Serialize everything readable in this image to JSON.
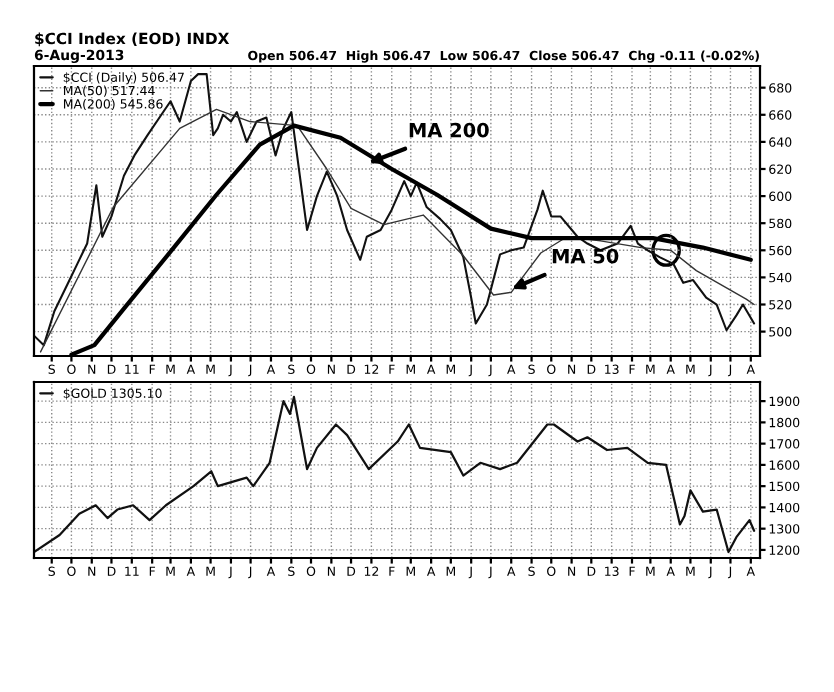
{
  "chart_data": [
    {
      "type": "line",
      "title": "$CCI Index (EOD) INDX",
      "subtitle": "6-Aug-2013",
      "annotations": [
        "Open 506.47  High 506.47  Low 506.47  Close 506.47  Chg -0.11 (-0.02%)",
        {
          "text": "MA 200",
          "x": "2011-12-20",
          "y": 623
        },
        {
          "text": "MA 50",
          "x": "2012-07-25",
          "y": 530
        }
      ],
      "xlim": [
        "2010-08-05",
        "2013-08-15"
      ],
      "ylim": [
        482,
        696
      ],
      "yticks": [
        500,
        520,
        540,
        560,
        580,
        600,
        620,
        640,
        660,
        680
      ],
      "xticks": [
        {
          "value": "2010-09-01",
          "label": "S"
        },
        {
          "value": "2010-10-01",
          "label": "O"
        },
        {
          "value": "2010-11-01",
          "label": "N"
        },
        {
          "value": "2010-12-01",
          "label": "D"
        },
        {
          "value": "2011-01-01",
          "label": "11"
        },
        {
          "value": "2011-02-01",
          "label": "F"
        },
        {
          "value": "2011-03-01",
          "label": "M"
        },
        {
          "value": "2011-04-01",
          "label": "A"
        },
        {
          "value": "2011-05-01",
          "label": "M"
        },
        {
          "value": "2011-06-01",
          "label": "J"
        },
        {
          "value": "2011-07-01",
          "label": "J"
        },
        {
          "value": "2011-08-01",
          "label": "A"
        },
        {
          "value": "2011-09-01",
          "label": "S"
        },
        {
          "value": "2011-10-01",
          "label": "O"
        },
        {
          "value": "2011-11-01",
          "label": "N"
        },
        {
          "value": "2011-12-01",
          "label": "D"
        },
        {
          "value": "2012-01-01",
          "label": "12"
        },
        {
          "value": "2012-02-01",
          "label": "F"
        },
        {
          "value": "2012-03-01",
          "label": "M"
        },
        {
          "value": "2012-04-01",
          "label": "A"
        },
        {
          "value": "2012-05-01",
          "label": "M"
        },
        {
          "value": "2012-06-01",
          "label": "J"
        },
        {
          "value": "2012-07-01",
          "label": "J"
        },
        {
          "value": "2012-08-01",
          "label": "A"
        },
        {
          "value": "2012-09-01",
          "label": "S"
        },
        {
          "value": "2012-10-01",
          "label": "O"
        },
        {
          "value": "2012-11-01",
          "label": "N"
        },
        {
          "value": "2012-12-01",
          "label": "D"
        },
        {
          "value": "2013-01-01",
          "label": "13"
        },
        {
          "value": "2013-02-01",
          "label": "F"
        },
        {
          "value": "2013-03-01",
          "label": "M"
        },
        {
          "value": "2013-04-01",
          "label": "A"
        },
        {
          "value": "2013-05-01",
          "label": "M"
        },
        {
          "value": "2013-06-01",
          "label": "J"
        },
        {
          "value": "2013-07-01",
          "label": "J"
        },
        {
          "value": "2013-08-01",
          "label": "A"
        }
      ],
      "grid": true,
      "legend": "top left",
      "series": [
        {
          "name": "$CCI (Daily) 506.47",
          "color": "#111111",
          "x": [
            "2010-08-05",
            "2010-08-20",
            "2010-09-05",
            "2010-09-25",
            "2010-10-10",
            "2010-10-25",
            "2010-11-08",
            "2010-11-17",
            "2010-12-01",
            "2010-12-20",
            "2011-01-05",
            "2011-01-25",
            "2011-02-15",
            "2011-03-01",
            "2011-03-15",
            "2011-04-01",
            "2011-04-12",
            "2011-04-25",
            "2011-05-05",
            "2011-05-12",
            "2011-05-20",
            "2011-06-01",
            "2011-06-10",
            "2011-06-25",
            "2011-07-10",
            "2011-07-25",
            "2011-08-08",
            "2011-08-20",
            "2011-09-01",
            "2011-09-25",
            "2011-10-10",
            "2011-10-25",
            "2011-11-10",
            "2011-11-25",
            "2011-12-15",
            "2011-12-25",
            "2012-01-15",
            "2012-02-01",
            "2012-02-20",
            "2012-03-01",
            "2012-03-10",
            "2012-03-25",
            "2012-04-15",
            "2012-05-01",
            "2012-05-20",
            "2012-06-01",
            "2012-06-08",
            "2012-06-25",
            "2012-07-15",
            "2012-08-01",
            "2012-08-20",
            "2012-09-10",
            "2012-09-18",
            "2012-10-01",
            "2012-10-15",
            "2012-11-10",
            "2012-11-25",
            "2012-12-15",
            "2013-01-10",
            "2013-01-30",
            "2013-02-10",
            "2013-02-25",
            "2013-03-15",
            "2013-04-05",
            "2013-04-20",
            "2013-05-05",
            "2013-05-25",
            "2013-06-10",
            "2013-06-25",
            "2013-07-10",
            "2013-07-20",
            "2013-08-06"
          ],
          "values": [
            497,
            490,
            515,
            535,
            550,
            565,
            608,
            570,
            585,
            615,
            630,
            645,
            660,
            670,
            655,
            685,
            690,
            690,
            645,
            650,
            660,
            655,
            662,
            640,
            655,
            658,
            630,
            650,
            662,
            575,
            600,
            618,
            600,
            575,
            553,
            570,
            575,
            590,
            611,
            600,
            610,
            592,
            583,
            575,
            555,
            525,
            506,
            520,
            557,
            560,
            562,
            590,
            604,
            585,
            585,
            570,
            565,
            560,
            565,
            578,
            565,
            560,
            555,
            550,
            536,
            538,
            525,
            520,
            501,
            512,
            520,
            506
          ]
        },
        {
          "name": "MA(50) 517.44",
          "color": "#333333",
          "x": [
            "2010-08-15",
            "2010-12-04",
            "2011-03-15",
            "2011-05-10",
            "2011-06-30",
            "2011-09-10",
            "2011-10-25",
            "2011-12-01",
            "2012-01-20",
            "2012-03-20",
            "2012-05-20",
            "2012-07-05",
            "2012-08-01",
            "2012-09-15",
            "2012-10-25",
            "2012-12-15",
            "2013-02-15",
            "2013-04-01",
            "2013-05-10",
            "2013-07-25",
            "2013-08-06"
          ],
          "values": [
            485,
            592,
            650,
            664,
            655,
            652,
            620,
            591,
            579,
            586,
            556,
            527,
            529,
            558,
            570,
            567,
            562,
            560,
            545,
            524,
            520
          ]
        },
        {
          "name": "MA(200) 545.86",
          "color": "#000000",
          "x": [
            "2010-10-01",
            "2010-11-05",
            "2010-12-20",
            "2011-03-01",
            "2011-05-10",
            "2011-07-15",
            "2011-09-05",
            "2011-11-15",
            "2012-02-01",
            "2012-04-10",
            "2012-07-01",
            "2012-09-01",
            "2012-12-15",
            "2013-03-05",
            "2013-05-20",
            "2013-08-01"
          ],
          "values": [
            483,
            490,
            517,
            559,
            601,
            638,
            652,
            643,
            620,
            601,
            576,
            569,
            569,
            569,
            562,
            553
          ]
        }
      ]
    },
    {
      "type": "line",
      "xlim": [
        "2010-08-05",
        "2013-08-15"
      ],
      "ylim": [
        1162,
        1990
      ],
      "yticks": [
        1200,
        1300,
        1400,
        1500,
        1600,
        1700,
        1800,
        1900
      ],
      "xticks": [
        {
          "value": "2010-09-01",
          "label": "S"
        },
        {
          "value": "2010-10-01",
          "label": "O"
        },
        {
          "value": "2010-11-01",
          "label": "N"
        },
        {
          "value": "2010-12-01",
          "label": "D"
        },
        {
          "value": "2011-01-01",
          "label": "11"
        },
        {
          "value": "2011-02-01",
          "label": "F"
        },
        {
          "value": "2011-03-01",
          "label": "M"
        },
        {
          "value": "2011-04-01",
          "label": "A"
        },
        {
          "value": "2011-05-01",
          "label": "M"
        },
        {
          "value": "2011-06-01",
          "label": "J"
        },
        {
          "value": "2011-07-01",
          "label": "J"
        },
        {
          "value": "2011-08-01",
          "label": "A"
        },
        {
          "value": "2011-09-01",
          "label": "S"
        },
        {
          "value": "2011-10-01",
          "label": "O"
        },
        {
          "value": "2011-11-01",
          "label": "N"
        },
        {
          "value": "2011-12-01",
          "label": "D"
        },
        {
          "value": "2012-01-01",
          "label": "12"
        },
        {
          "value": "2012-02-01",
          "label": "F"
        },
        {
          "value": "2012-03-01",
          "label": "M"
        },
        {
          "value": "2012-04-01",
          "label": "A"
        },
        {
          "value": "2012-05-01",
          "label": "M"
        },
        {
          "value": "2012-06-01",
          "label": "J"
        },
        {
          "value": "2012-07-01",
          "label": "J"
        },
        {
          "value": "2012-08-01",
          "label": "A"
        },
        {
          "value": "2012-09-01",
          "label": "S"
        },
        {
          "value": "2012-10-01",
          "label": "O"
        },
        {
          "value": "2012-11-01",
          "label": "N"
        },
        {
          "value": "2012-12-01",
          "label": "D"
        },
        {
          "value": "2013-01-01",
          "label": "13"
        },
        {
          "value": "2013-02-01",
          "label": "F"
        },
        {
          "value": "2013-03-01",
          "label": "M"
        },
        {
          "value": "2013-04-01",
          "label": "A"
        },
        {
          "value": "2013-05-01",
          "label": "M"
        },
        {
          "value": "2013-06-01",
          "label": "J"
        },
        {
          "value": "2013-07-01",
          "label": "J"
        },
        {
          "value": "2013-08-01",
          "label": "A"
        }
      ],
      "grid": true,
      "legend": "top left",
      "series": [
        {
          "name": "$GOLD 1305.10",
          "color": "#111111",
          "x": [
            "2010-08-05",
            "2010-09-13",
            "2010-10-13",
            "2010-11-07",
            "2010-11-25",
            "2010-12-10",
            "2011-01-03",
            "2011-01-28",
            "2011-02-22",
            "2011-04-05",
            "2011-05-02",
            "2011-05-12",
            "2011-06-25",
            "2011-07-05",
            "2011-07-30",
            "2011-08-20",
            "2011-08-30",
            "2011-09-05",
            "2011-09-25",
            "2011-10-10",
            "2011-11-08",
            "2011-11-25",
            "2011-12-28",
            "2012-02-10",
            "2012-02-27",
            "2012-03-15",
            "2012-05-01",
            "2012-05-20",
            "2012-06-15",
            "2012-07-15",
            "2012-08-10",
            "2012-09-25",
            "2012-10-05",
            "2012-11-10",
            "2012-11-25",
            "2012-12-25",
            "2013-01-25",
            "2013-02-25",
            "2013-03-25",
            "2013-04-15",
            "2013-04-22",
            "2013-05-01",
            "2013-05-20",
            "2013-06-10",
            "2013-06-28",
            "2013-07-10",
            "2013-07-30",
            "2013-08-06"
          ],
          "values": [
            1190,
            1270,
            1370,
            1410,
            1350,
            1390,
            1410,
            1340,
            1410,
            1500,
            1570,
            1500,
            1540,
            1500,
            1610,
            1900,
            1840,
            1920,
            1580,
            1680,
            1790,
            1740,
            1580,
            1710,
            1790,
            1680,
            1660,
            1550,
            1610,
            1580,
            1610,
            1790,
            1790,
            1710,
            1730,
            1670,
            1680,
            1610,
            1600,
            1320,
            1360,
            1480,
            1380,
            1390,
            1190,
            1260,
            1340,
            1290
          ]
        }
      ]
    }
  ]
}
